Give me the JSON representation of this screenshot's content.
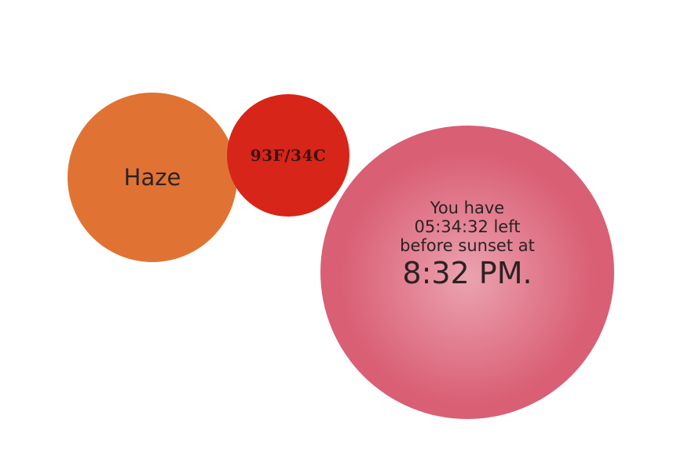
{
  "weather": {
    "condition": "Haze",
    "temperature": "93F/34C"
  },
  "sunset": {
    "line1": "You have",
    "countdown_line": "05:34:32 left",
    "line3": "before sunset at",
    "time": "8:32 PM."
  },
  "colors": {
    "condition_circle": "#e07334",
    "temperature_circle": "#d72519",
    "sunset_circle": "#d95f75"
  }
}
